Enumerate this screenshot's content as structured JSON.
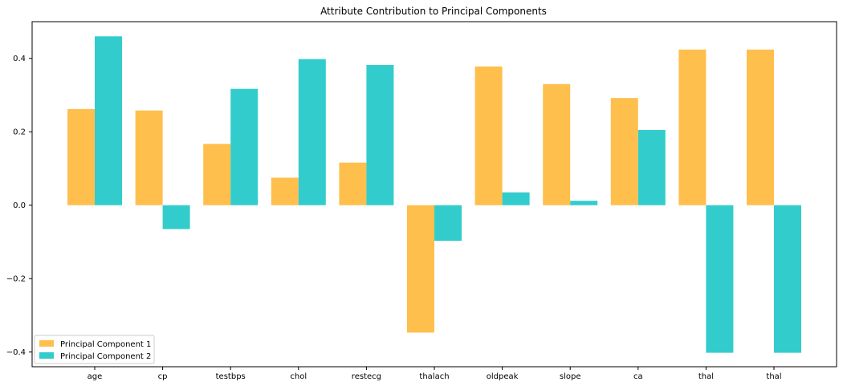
{
  "chart_data": {
    "type": "bar",
    "title": "Attribute Contribution to Principal Components",
    "xlabel": "",
    "ylabel": "",
    "categories": [
      "age",
      "cp",
      "testbps",
      "chol",
      "restecg",
      "thalach",
      "oldpeak",
      "slope",
      "ca",
      "thal",
      "thal"
    ],
    "series": [
      {
        "name": "Principal Component 1",
        "color": "#ffbf4d",
        "values": [
          0.262,
          0.258,
          0.167,
          0.075,
          0.116,
          -0.347,
          0.378,
          0.33,
          0.292,
          0.424,
          0.424
        ]
      },
      {
        "name": "Principal Component 2",
        "color": "#33cccc",
        "values": [
          0.46,
          -0.065,
          0.317,
          0.398,
          0.382,
          -0.097,
          0.035,
          0.012,
          0.205,
          -0.402,
          -0.402
        ]
      }
    ],
    "ylim": [
      -0.44,
      0.5
    ],
    "yticks": [
      -0.4,
      -0.2,
      0.0,
      0.2,
      0.4
    ],
    "ytick_labels": [
      "−0.4",
      "−0.2",
      "0.0",
      "0.2",
      "0.4"
    ],
    "grid": false,
    "legend_position": "lower-left"
  }
}
